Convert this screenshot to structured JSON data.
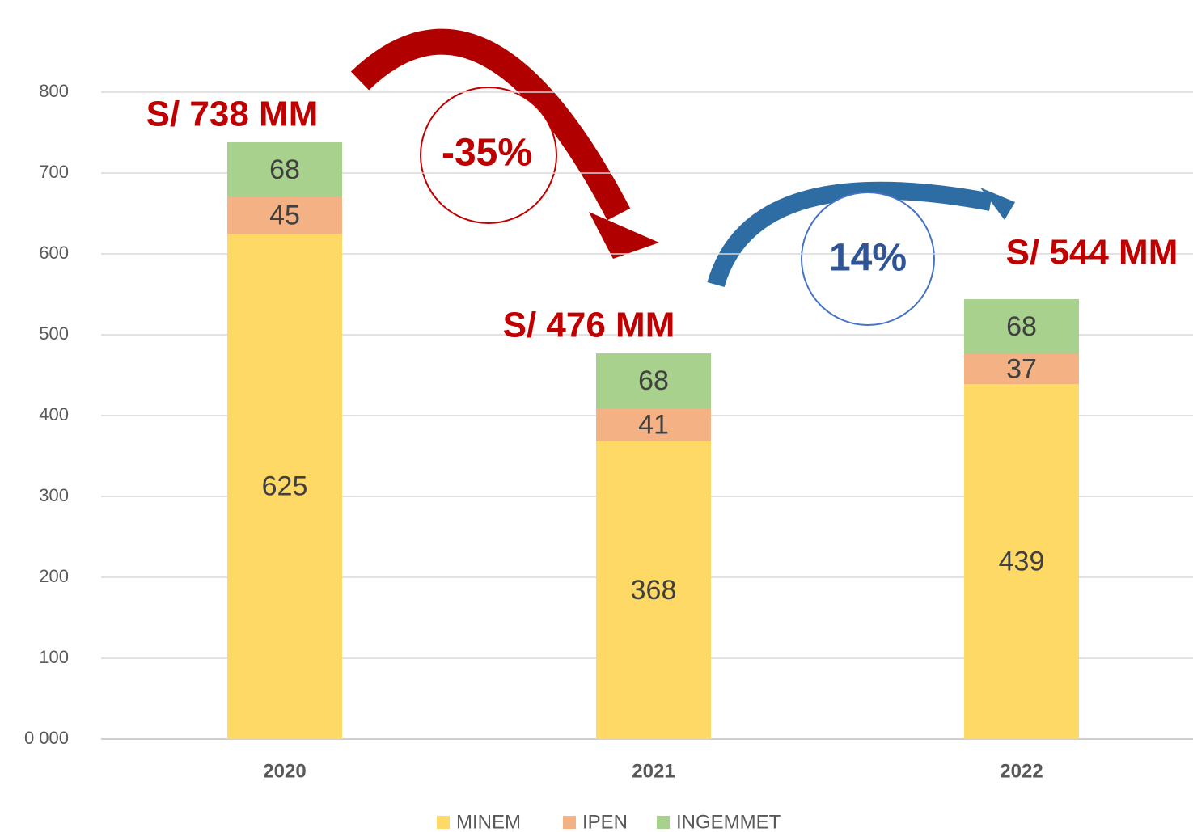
{
  "chart_data": {
    "type": "stacked_bar",
    "categories": [
      "2020",
      "2021",
      "2022"
    ],
    "series": [
      {
        "name": "MINEM",
        "color": "#FFD966",
        "values": [
          625,
          368,
          439
        ]
      },
      {
        "name": "IPEN",
        "color": "#F4B183",
        "values": [
          45,
          41,
          37
        ]
      },
      {
        "name": "INGEMMET",
        "color": "#A9D18E",
        "values": [
          68,
          68,
          68
        ]
      }
    ],
    "ylim": [
      0,
      800
    ],
    "yticks": [
      {
        "value": 0,
        "label": "0 000"
      },
      100,
      200,
      300,
      400,
      500,
      600,
      700,
      800
    ],
    "grid": true,
    "legend": "bottom",
    "annotations": [
      "S/ 738 MM",
      "S/ 476 MM",
      "S/ 544 MM",
      "-35%",
      "14%"
    ]
  }
}
